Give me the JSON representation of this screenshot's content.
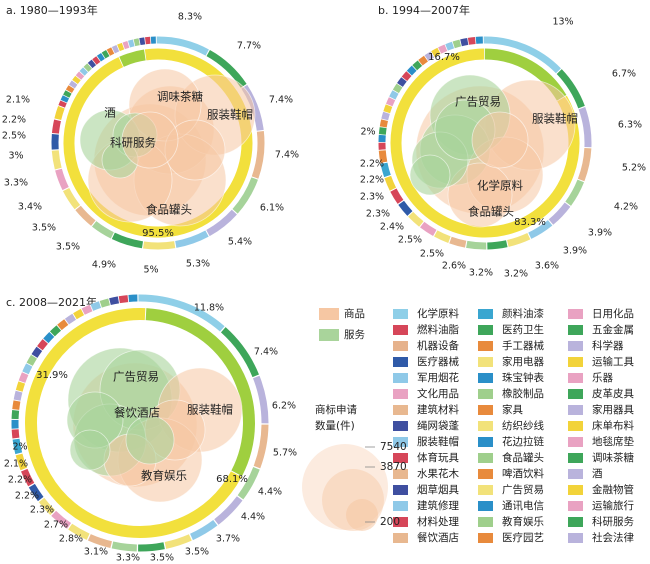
{
  "chart_data": [
    {
      "type": "donut-bubble",
      "title": "a. 1980—1993年",
      "inner_ring": [
        {
          "name": "商品",
          "value": "95.5%"
        }
      ],
      "outer_ring_percent_labels": [
        "8.3%",
        "7.7%",
        "7.4%",
        "7.4%",
        "6.1%",
        "5.4%",
        "5.3%",
        "5%",
        "4.9%",
        "3.5%",
        "3.5%",
        "3.4%",
        "3.3%",
        "3%",
        "2.5%",
        "2.2%",
        "2.1%"
      ],
      "bubble_labels": [
        "调味茶糖",
        "酒",
        "服装鞋帽",
        "科研服务",
        "食品罐头"
      ]
    },
    {
      "type": "donut-bubble",
      "title": "b. 1994—2007年",
      "inner_ring": [
        {
          "name": "商品",
          "value": "83.3%"
        },
        {
          "name": "服务",
          "value": "16.7%"
        }
      ],
      "outer_ring_percent_labels": [
        "13%",
        "6.7%",
        "6.3%",
        "5.2%",
        "4.2%",
        "3.9%",
        "3.9%",
        "3.6%",
        "3.2%",
        "3.2%",
        "2.6%",
        "2.5%",
        "2.5%",
        "2.4%",
        "2.3%",
        "2.3%",
        "2.2%",
        "2.2%",
        "2%"
      ],
      "bubble_labels": [
        "广告贸易",
        "服装鞋帽",
        "化学原料",
        "食品罐头"
      ]
    },
    {
      "type": "donut-bubble",
      "title": "c. 2008—2021年",
      "inner_ring": [
        {
          "name": "商品",
          "value": "68.1%"
        },
        {
          "name": "服务",
          "value": "31.9%"
        }
      ],
      "outer_ring_percent_labels": [
        "11.8%",
        "7.4%",
        "6.2%",
        "5.7%",
        "4.4%",
        "4.4%",
        "3.7%",
        "3.5%",
        "3.5%",
        "3.3%",
        "3.1%",
        "2.8%",
        "2.7%",
        "2.3%",
        "2.2%",
        "2.2%",
        "2.1%",
        "2%"
      ],
      "bubble_labels": [
        "广告贸易",
        "餐饮酒店",
        "服装鞋帽",
        "教育娱乐"
      ]
    }
  ],
  "legend": {
    "types": [
      {
        "name": "商品",
        "color": "#f6c7a3"
      },
      {
        "name": "服务",
        "color": "#a9d49b"
      }
    ],
    "categories": [
      {
        "name": "化学原料",
        "color": "#8fcfe8"
      },
      {
        "name": "燃料油脂",
        "color": "#d64659"
      },
      {
        "name": "机器设备",
        "color": "#e6b28c"
      },
      {
        "name": "医疗器械",
        "color": "#2f5aa8"
      },
      {
        "name": "军用烟花",
        "color": "#8fc9e8"
      },
      {
        "name": "文化用品",
        "color": "#e9a2c2"
      },
      {
        "name": "建筑材料",
        "color": "#e8b890"
      },
      {
        "name": "绳网袋蓬",
        "color": "#3f4fa0"
      },
      {
        "name": "服装鞋帽",
        "color": "#8fc9e8"
      },
      {
        "name": "体育玩具",
        "color": "#d64659"
      },
      {
        "name": "水果花木",
        "color": "#e8b890"
      },
      {
        "name": "烟草烟具",
        "color": "#3f4fa0"
      },
      {
        "name": "建筑修理",
        "color": "#8fc9e8"
      },
      {
        "name": "材料处理",
        "color": "#d64659"
      },
      {
        "name": "餐饮酒店",
        "color": "#e8b890"
      },
      {
        "name": "颜料油漆",
        "color": "#3aa6d0"
      },
      {
        "name": "医药卫生",
        "color": "#3ea65a"
      },
      {
        "name": "手工器械",
        "color": "#e88a3c"
      },
      {
        "name": "家用电器",
        "color": "#f2e27a"
      },
      {
        "name": "珠宝钟表",
        "color": "#2a8fc8"
      },
      {
        "name": "橡胶制品",
        "color": "#9fcf8c"
      },
      {
        "name": "家具",
        "color": "#e88a3c"
      },
      {
        "name": "纺织纱线",
        "color": "#f2e27a"
      },
      {
        "name": "花边拉链",
        "color": "#2a8fc8"
      },
      {
        "name": "食品罐头",
        "color": "#9fcf8c"
      },
      {
        "name": "啤酒饮料",
        "color": "#e88a3c"
      },
      {
        "name": "广告贸易",
        "color": "#f2e27a"
      },
      {
        "name": "通讯电信",
        "color": "#2a8fc8"
      },
      {
        "name": "教育娱乐",
        "color": "#9fcf8c"
      },
      {
        "name": "医疗园艺",
        "color": "#e88a3c"
      },
      {
        "name": "日用化品",
        "color": "#e9a2c2"
      },
      {
        "name": "五金金属",
        "color": "#3ea65a"
      },
      {
        "name": "科学器",
        "color": "#b9b3dc"
      },
      {
        "name": "运输工具",
        "color": "#f2d33a"
      },
      {
        "name": "乐器",
        "color": "#e9a2c2"
      },
      {
        "name": "皮革皮具",
        "color": "#3ea65a"
      },
      {
        "name": "家用器具",
        "color": "#b9b3dc"
      },
      {
        "name": "床单布料",
        "color": "#f2d33a"
      },
      {
        "name": "地毯席垫",
        "color": "#e9a2c2"
      },
      {
        "name": "调味茶糖",
        "color": "#3ea65a"
      },
      {
        "name": "酒",
        "color": "#b9b3dc"
      },
      {
        "name": "金融物管",
        "color": "#f2d33a"
      },
      {
        "name": "运输旅行",
        "color": "#e9a2c2"
      },
      {
        "name": "科研服务",
        "color": "#3ea65a"
      },
      {
        "name": "社会法律",
        "color": "#b9b3dc"
      }
    ],
    "size_title": "商标申请\n数量(件)",
    "size_values": [
      "7540",
      "3870",
      "200"
    ]
  }
}
